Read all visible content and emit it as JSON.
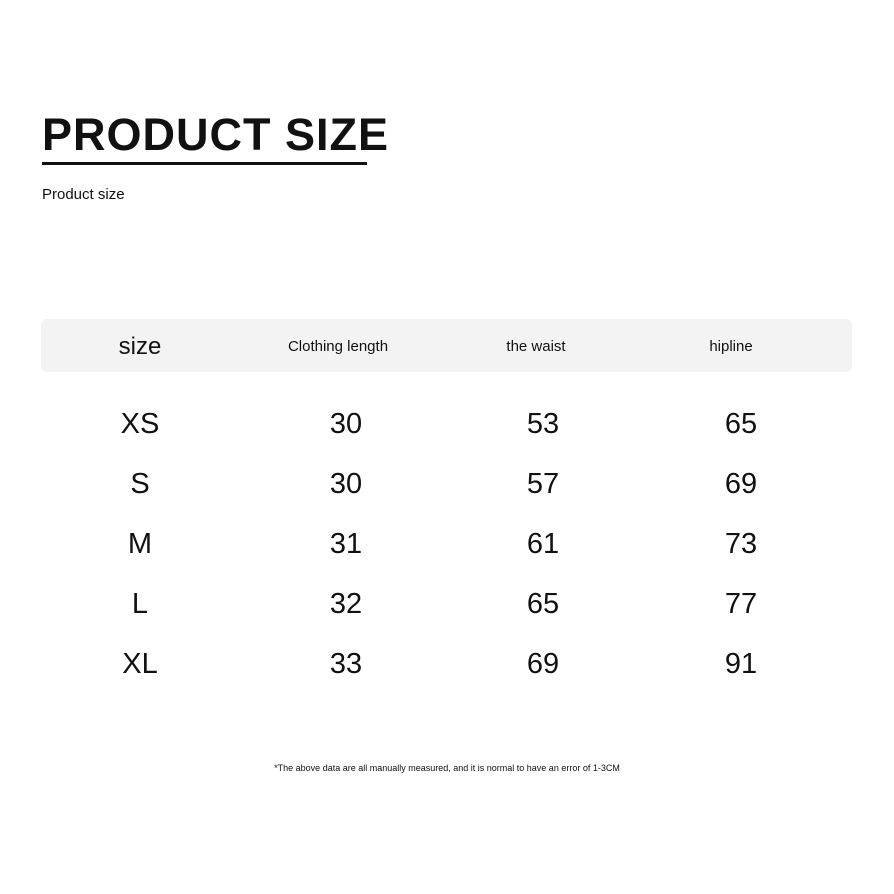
{
  "title": "PRODUCT SIZE",
  "subtitle": "Product size",
  "table": {
    "headers": [
      "size",
      "Clothing length",
      "the waist",
      "hipline"
    ],
    "rows": [
      [
        "XS",
        "30",
        "53",
        "65"
      ],
      [
        "S",
        "30",
        "57",
        "69"
      ],
      [
        "M",
        "31",
        "61",
        "73"
      ],
      [
        "L",
        "32",
        "65",
        "77"
      ],
      [
        "XL",
        "33",
        "69",
        "91"
      ]
    ]
  },
  "note": "*The above data are all manually measured, and it is normal to have an error of 1-3CM"
}
